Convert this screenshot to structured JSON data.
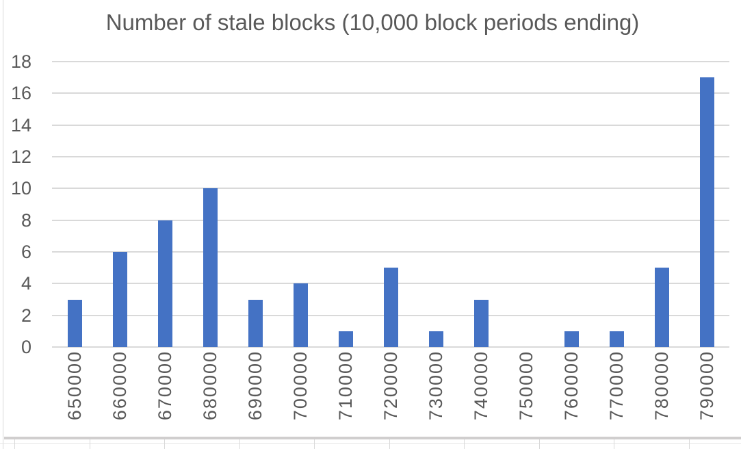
{
  "chart_data": {
    "type": "bar",
    "title": "Number of stale blocks (10,000 block periods ending)",
    "categories": [
      "650000",
      "660000",
      "670000",
      "680000",
      "690000",
      "700000",
      "710000",
      "720000",
      "730000",
      "740000",
      "750000",
      "760000",
      "770000",
      "780000",
      "790000"
    ],
    "values": [
      3,
      6,
      8,
      10,
      3,
      4,
      1,
      5,
      1,
      3,
      0,
      1,
      1,
      5,
      17
    ],
    "xlabel": "",
    "ylabel": "",
    "ylim": [
      0,
      18
    ],
    "y_ticks": [
      0,
      2,
      4,
      6,
      8,
      10,
      12,
      14,
      16,
      18
    ],
    "grid": "horizontal",
    "legend": "none",
    "x_tick_rotation": -90,
    "bar_color": "#4472C4",
    "gridline_color": "#D9D9D9",
    "text_color": "#595959"
  }
}
